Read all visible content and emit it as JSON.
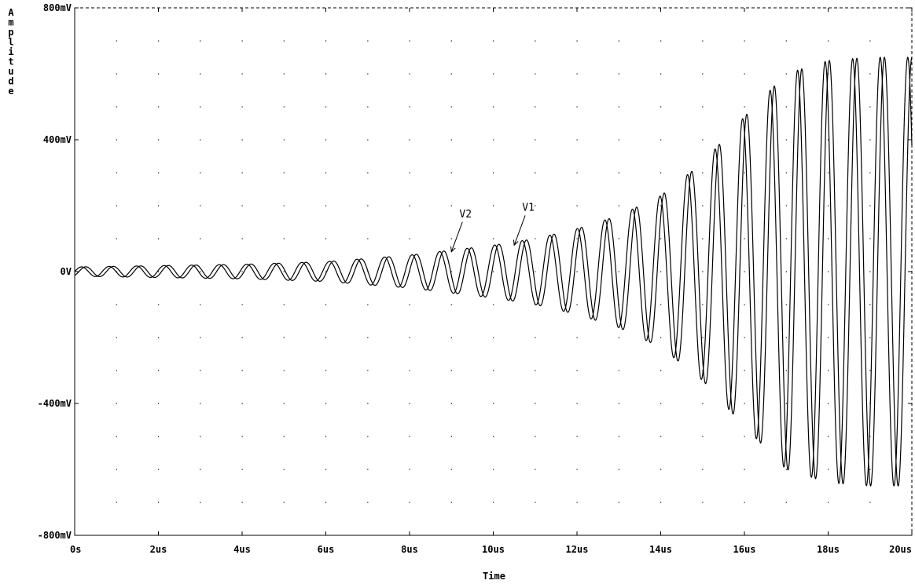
{
  "chart_data": {
    "type": "line",
    "title": "",
    "xlabel": "Time",
    "ylabel": "Amplitude",
    "xlim": [
      0,
      20
    ],
    "ylim": [
      -800,
      800
    ],
    "x_unit": "us",
    "y_unit": "mV",
    "x_ticks": [
      0,
      2,
      4,
      6,
      8,
      10,
      12,
      14,
      16,
      18,
      20
    ],
    "x_tick_labels": [
      "0s",
      "2us",
      "4us",
      "6us",
      "8us",
      "10us",
      "12us",
      "14us",
      "16us",
      "18us",
      "20us"
    ],
    "y_ticks": [
      -800,
      -400,
      0,
      400,
      800
    ],
    "y_tick_labels": [
      "-800mV",
      "-400mV",
      "0V",
      "400mV",
      "800mV"
    ],
    "grid": "dotted",
    "legend": "none",
    "line_color": "#000000",
    "series": [
      {
        "name": "V1",
        "frequency_mhz": 1.52,
        "phase_deg": 0,
        "envelope_t_us": [
          0,
          2,
          4,
          6,
          8,
          10,
          11,
          12,
          13,
          14,
          15,
          16,
          17,
          18,
          19,
          20
        ],
        "envelope_mv": [
          14,
          18,
          22,
          30,
          50,
          80,
          100,
          130,
          170,
          230,
          330,
          470,
          600,
          640,
          650,
          650
        ]
      },
      {
        "name": "V2",
        "frequency_mhz": 1.52,
        "phase_deg": -55,
        "envelope_t_us": [
          0,
          2,
          4,
          6,
          8,
          10,
          11,
          12,
          13,
          14,
          15,
          16,
          17,
          18,
          19,
          20
        ],
        "envelope_mv": [
          14,
          18,
          22,
          30,
          50,
          80,
          100,
          130,
          170,
          230,
          330,
          470,
          600,
          640,
          650,
          650
        ]
      }
    ],
    "annotations": [
      {
        "text": "V2",
        "point_t_us": 9.0,
        "point_mv": 60
      },
      {
        "text": "V1",
        "point_t_us": 10.5,
        "point_mv": 80
      }
    ]
  }
}
